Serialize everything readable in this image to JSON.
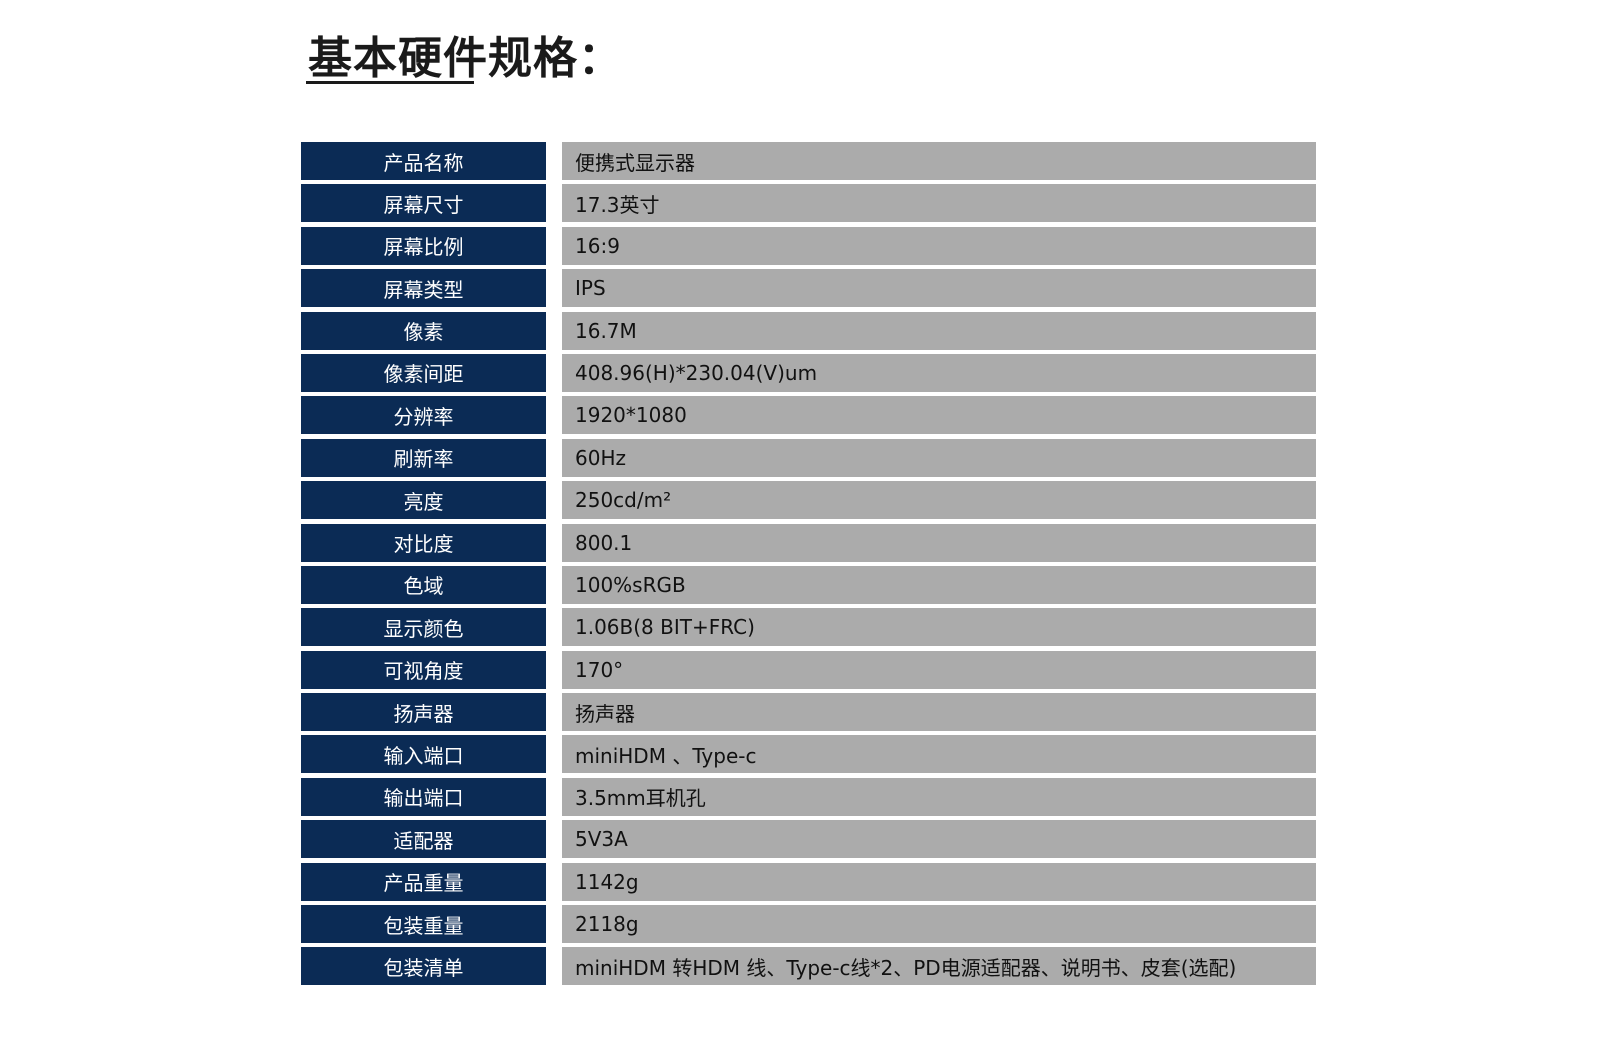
{
  "title": "基本硬件规格：",
  "specs": [
    {
      "label": "产品名称",
      "value": "便携式显示器"
    },
    {
      "label": "屏幕尺寸",
      "value": "17.3英寸"
    },
    {
      "label": "屏幕比例",
      "value": "16:9"
    },
    {
      "label": "屏幕类型",
      "value": "IPS"
    },
    {
      "label": "像素",
      "value": "16.7M"
    },
    {
      "label": "像素间距",
      "value": "408.96(H)*230.04(V)um"
    },
    {
      "label": "分辨率",
      "value": "1920*1080"
    },
    {
      "label": "刷新率",
      "value": "60Hz"
    },
    {
      "label": "亮度",
      "value": "250cd/m²"
    },
    {
      "label": "对比度",
      "value": "800.1"
    },
    {
      "label": "色域",
      "value": "100%sRGB"
    },
    {
      "label": "显示颜色",
      "value": "1.06B(8 BIT+FRC)"
    },
    {
      "label": "可视角度",
      "value": "170°"
    },
    {
      "label": "扬声器",
      "value": "扬声器"
    },
    {
      "label": "输入端口",
      "value": "miniHDM 、Type-c"
    },
    {
      "label": "输出端口",
      "value": "3.5mm耳机孔"
    },
    {
      "label": "适配器",
      "value": "5V3A"
    },
    {
      "label": "产品重量",
      "value": "1142g"
    },
    {
      "label": "包装重量",
      "value": "2118g"
    },
    {
      "label": "包装清单",
      "value": "miniHDM 转HDM 线、Type-c线*2、PD电源适配器、说明书、皮套(选配)"
    }
  ]
}
